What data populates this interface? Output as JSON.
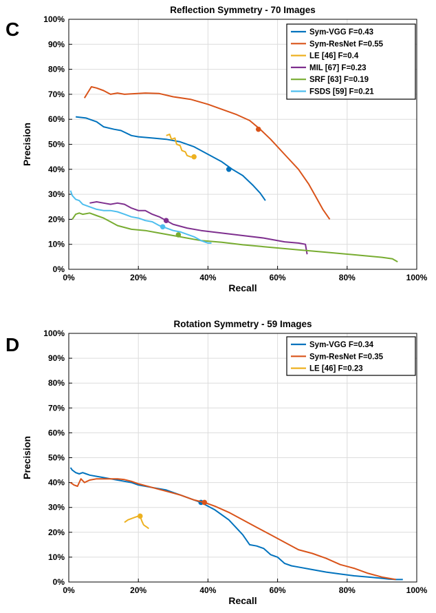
{
  "chart_data": [
    {
      "panel": "C",
      "type": "line",
      "title": "Reflection Symmetry - 70 Images",
      "xlabel": "Recall",
      "ylabel": "Precision",
      "xlim": [
        0,
        100
      ],
      "ylim": [
        0,
        100
      ],
      "xticks": [
        "0%",
        "20%",
        "40%",
        "60%",
        "80%",
        "100%"
      ],
      "yticks": [
        "0%",
        "10%",
        "20%",
        "30%",
        "40%",
        "50%",
        "60%",
        "70%",
        "80%",
        "90%",
        "100%"
      ],
      "grid": true,
      "legend_position": "top-right",
      "series": [
        {
          "name": "Sym-VGG F=0.43",
          "color": "#0072BD",
          "x": [
            2,
            5,
            8,
            10,
            13,
            15,
            18,
            20,
            24,
            28,
            32,
            36,
            40,
            44,
            47,
            50,
            53,
            55,
            56.5
          ],
          "y": [
            61,
            60.5,
            59,
            57,
            56,
            55.5,
            53.5,
            53,
            52.5,
            52,
            51,
            49,
            46,
            43,
            40,
            37.5,
            33.5,
            30.5,
            27.5
          ],
          "marker": [
            46,
            40
          ]
        },
        {
          "name": "Sym-ResNet F=0.55",
          "color": "#D95319",
          "x": [
            4.5,
            6.5,
            8,
            10,
            12,
            14,
            16,
            18,
            22,
            26,
            30,
            35,
            40,
            44,
            48,
            52,
            55,
            58,
            62,
            66,
            69,
            71,
            73,
            75
          ],
          "y": [
            68.5,
            73,
            72.5,
            71.5,
            70,
            70.5,
            70,
            70.2,
            70.5,
            70.3,
            69,
            68,
            66,
            64,
            62,
            59.5,
            56,
            52,
            46,
            40,
            34,
            29,
            24,
            20
          ],
          "marker": [
            54.5,
            56
          ]
        },
        {
          "name": "LE [46] F=0.4",
          "color": "#EDB120",
          "x": [
            28,
            29,
            29.5,
            30.5,
            31,
            32,
            32.5,
            33.5,
            34,
            35,
            36
          ],
          "y": [
            53.5,
            54,
            52,
            52.5,
            50,
            49.5,
            47.5,
            47,
            45.5,
            45,
            45
          ],
          "marker": [
            36,
            45
          ]
        },
        {
          "name": "MIL [67] F=0.23",
          "color": "#7E2F8E",
          "x": [
            6,
            8,
            10,
            12,
            14,
            16,
            18,
            20,
            22,
            24,
            26,
            28,
            30,
            34,
            38,
            44,
            50,
            56,
            62,
            66,
            68,
            68.5
          ],
          "y": [
            26.5,
            27,
            26.5,
            26,
            26.5,
            26,
            24.5,
            23.5,
            23.5,
            22,
            21,
            19.5,
            18,
            16.5,
            15.5,
            14.5,
            13.5,
            12.5,
            11,
            10.5,
            10,
            6
          ],
          "marker": [
            28,
            19.5
          ]
        },
        {
          "name": "SRF [63] F=0.19",
          "color": "#77AC30",
          "x": [
            1,
            2,
            3,
            4,
            6,
            8,
            10,
            12,
            14,
            18,
            22,
            26,
            30,
            34,
            38,
            44,
            50,
            58,
            66,
            74,
            82,
            90,
            93,
            94.5
          ],
          "y": [
            20,
            22,
            22.5,
            22,
            22.5,
            21.5,
            20.5,
            19,
            17.5,
            16,
            15.5,
            14.5,
            13.5,
            12.5,
            11.5,
            10.8,
            9.8,
            8.8,
            7.8,
            6.8,
            5.8,
            4.8,
            4.2,
            3
          ],
          "marker": [
            31.5,
            13.8
          ]
        },
        {
          "name": "FSDS [59] F=0.21",
          "color": "#4DBEEE",
          "x": [
            0.5,
            1,
            2,
            3,
            4,
            5,
            6,
            8,
            10,
            12,
            14,
            16,
            18,
            20,
            22,
            24,
            26,
            28,
            30,
            32,
            34,
            36,
            38,
            40,
            41
          ],
          "y": [
            31.5,
            29.5,
            28,
            27.5,
            26,
            25.5,
            25,
            24,
            23.5,
            23.5,
            23,
            22,
            21,
            20.5,
            19.5,
            19,
            17.5,
            16.5,
            15.5,
            15,
            14,
            13,
            11.5,
            10.5,
            10.5
          ],
          "marker": [
            27,
            17
          ]
        }
      ]
    },
    {
      "panel": "D",
      "type": "line",
      "title": "Rotation Symmetry - 59 Images",
      "xlabel": "Recall",
      "ylabel": "Precision",
      "xlim": [
        0,
        100
      ],
      "ylim": [
        0,
        100
      ],
      "xticks": [
        "0%",
        "20%",
        "40%",
        "60%",
        "80%",
        "100%"
      ],
      "yticks": [
        "0%",
        "10%",
        "20%",
        "30%",
        "40%",
        "50%",
        "60%",
        "70%",
        "80%",
        "90%",
        "100%"
      ],
      "grid": true,
      "legend_position": "top-right",
      "series": [
        {
          "name": "Sym-VGG F=0.34",
          "color": "#0072BD",
          "x": [
            0.5,
            1,
            2,
            3,
            4,
            5,
            6,
            8,
            10,
            12,
            14,
            16,
            18,
            20,
            24,
            28,
            32,
            36,
            38,
            40,
            42,
            44,
            46,
            48,
            50,
            52,
            54,
            56,
            58,
            60,
            62,
            64,
            66,
            70,
            74,
            78,
            82,
            86,
            90,
            92,
            94,
            96
          ],
          "y": [
            46,
            45,
            44,
            43.5,
            44,
            43.5,
            43,
            42.5,
            42,
            41.5,
            41,
            40.5,
            40,
            39,
            38,
            37,
            35,
            33,
            32,
            30.5,
            29,
            27,
            25,
            22,
            19,
            15,
            14.5,
            13.5,
            11,
            10,
            7.5,
            6.5,
            6,
            5,
            4,
            3.2,
            2.5,
            2,
            1.5,
            1.2,
            1.0,
            1.0
          ],
          "marker": [
            38,
            32
          ]
        },
        {
          "name": "Sym-ResNet F=0.35",
          "color": "#D95319",
          "x": [
            0.5,
            1.5,
            2.5,
            3.5,
            4.5,
            6,
            8,
            10,
            12,
            14,
            16,
            18,
            20,
            24,
            28,
            32,
            36,
            39,
            42,
            46,
            50,
            54,
            58,
            62,
            66,
            70,
            74,
            78,
            82,
            86,
            90,
            94
          ],
          "y": [
            40,
            39,
            38.5,
            41.5,
            40,
            41,
            41.5,
            41.5,
            41.5,
            41.5,
            41.2,
            40.5,
            39.5,
            38,
            36.5,
            35,
            33,
            32,
            30.5,
            28,
            25,
            22,
            19,
            16,
            13,
            11.5,
            9.5,
            7,
            5.5,
            3.5,
            2,
            1
          ],
          "marker": [
            39,
            32
          ]
        },
        {
          "name": "LE [46] F=0.23",
          "color": "#EDB120",
          "x": [
            16,
            17,
            18,
            19,
            20,
            20.5,
            21,
            21.5,
            22,
            22.5,
            23
          ],
          "y": [
            24,
            25,
            25.5,
            26,
            26.5,
            26.5,
            24.5,
            23,
            22.5,
            22,
            21.5
          ],
          "marker": [
            20.5,
            26.5
          ]
        }
      ]
    }
  ]
}
